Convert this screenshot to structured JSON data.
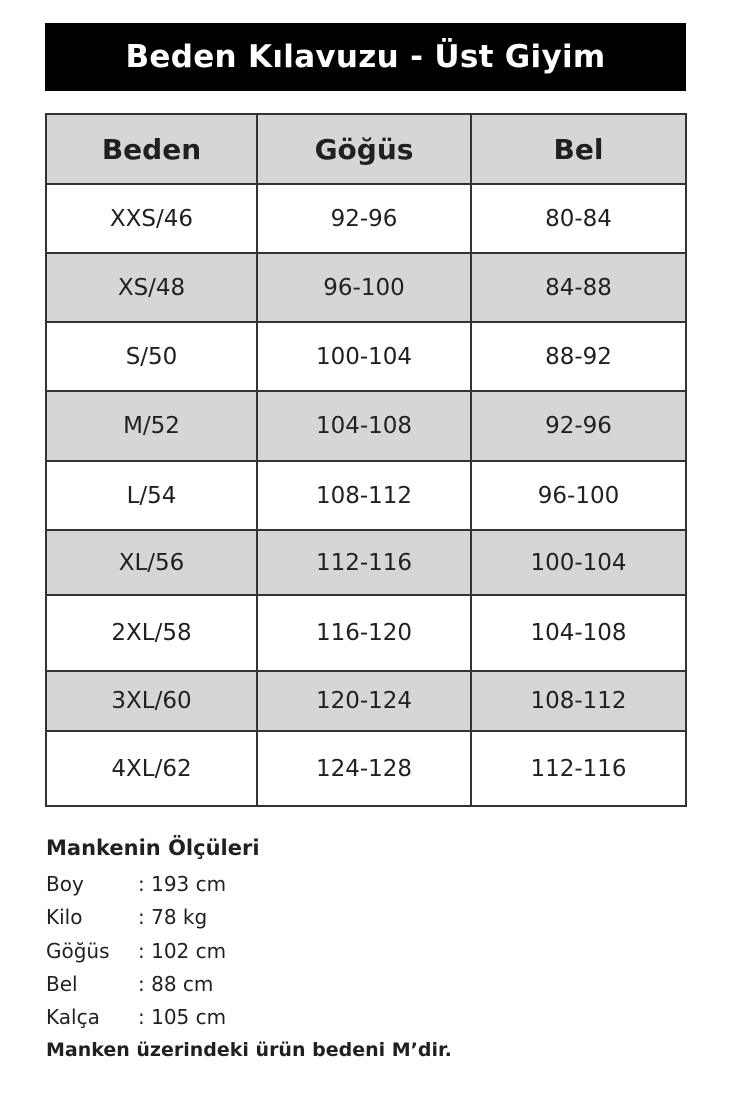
{
  "title": "Beden Kılavuzu - Üst Giyim",
  "table": {
    "headers": [
      "Beden",
      "Göğüs",
      "Bel"
    ],
    "rows": [
      [
        "XXS/46",
        "92-96",
        "80-84"
      ],
      [
        "XS/48",
        "96-100",
        "84-88"
      ],
      [
        "S/50",
        "100-104",
        "88-92"
      ],
      [
        "M/52",
        "104-108",
        "92-96"
      ],
      [
        "L/54",
        "108-112",
        "96-100"
      ],
      [
        "XL/56",
        "112-116",
        "100-104"
      ],
      [
        "2XL/58",
        "116-120",
        "104-108"
      ],
      [
        "3XL/60",
        "120-124",
        "108-112"
      ],
      [
        "4XL/62",
        "124-128",
        "112-116"
      ]
    ]
  },
  "model": {
    "heading": "Mankenin Ölçüleri",
    "items": [
      {
        "label": "Boy",
        "value": ": 193 cm"
      },
      {
        "label": "Kilo",
        "value": ": 78 kg"
      },
      {
        "label": "Göğüs",
        "value": ": 102 cm"
      },
      {
        "label": "Bel",
        "value": ": 88 cm"
      },
      {
        "label": "Kalça",
        "value": ": 105 cm"
      }
    ],
    "note": "Manken üzerindeki ürün bedeni  M’dir."
  },
  "colors": {
    "title_bg": "#000000",
    "alt_row": "#d6d6d6"
  }
}
